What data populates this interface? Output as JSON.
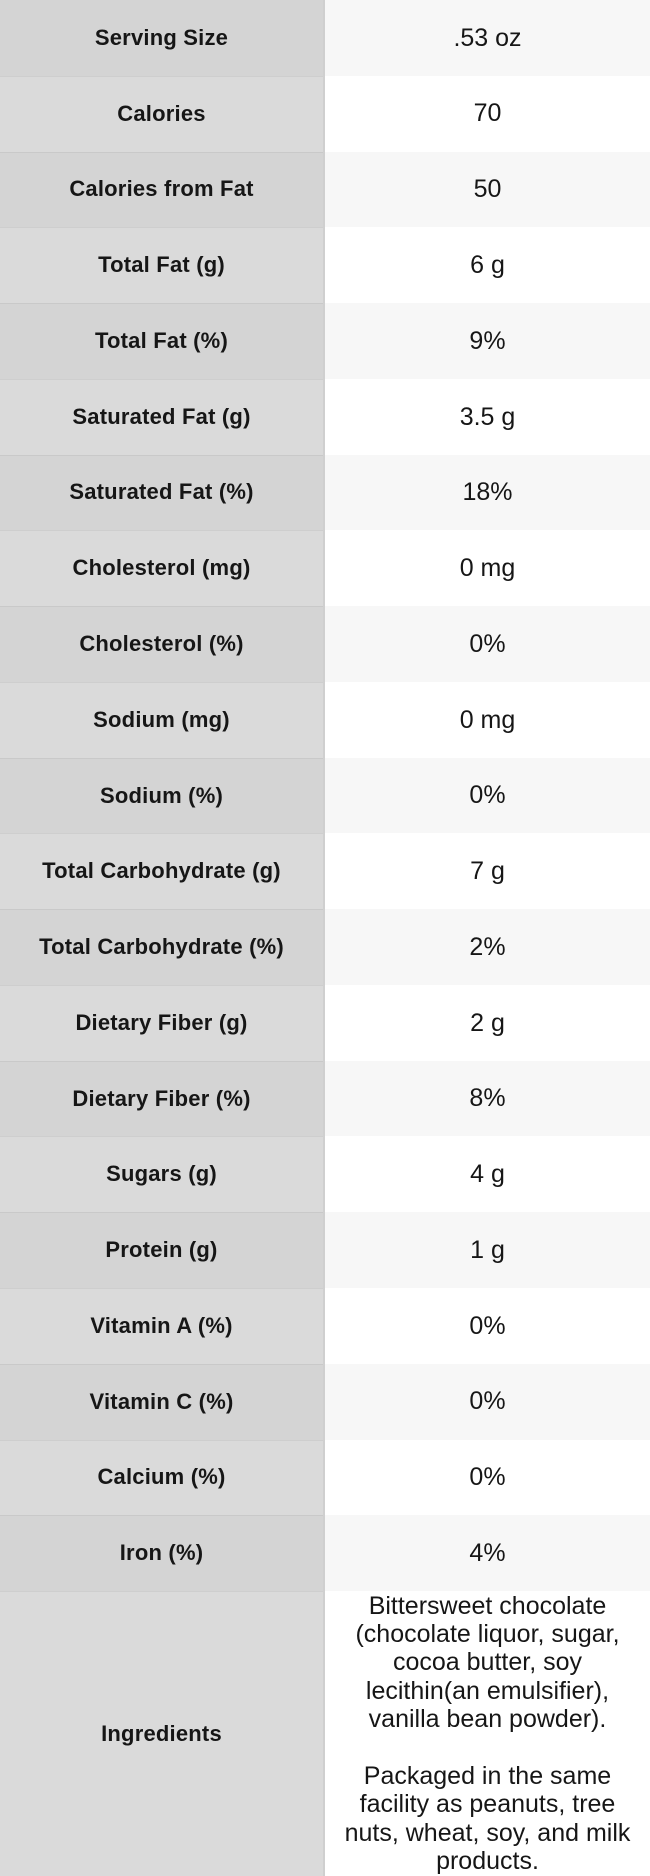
{
  "colors": {
    "label_bg_odd": "#d4d4d4",
    "label_bg_even": "#dadada",
    "value_bg_odd": "#f7f7f7",
    "value_bg_even": "#ffffff",
    "column_divider": "#cfcfcf",
    "text": "#161616"
  },
  "chart_data": {
    "type": "table",
    "title": "",
    "rows": [
      {
        "label": "Serving Size",
        "value": ".53 oz"
      },
      {
        "label": "Calories",
        "value": "70"
      },
      {
        "label": "Calories from Fat",
        "value": "50"
      },
      {
        "label": "Total Fat (g)",
        "value": "6 g"
      },
      {
        "label": "Total Fat (%)",
        "value": "9%"
      },
      {
        "label": "Saturated Fat (g)",
        "value": "3.5 g"
      },
      {
        "label": "Saturated Fat (%)",
        "value": "18%"
      },
      {
        "label": "Cholesterol (mg)",
        "value": "0 mg"
      },
      {
        "label": "Cholesterol (%)",
        "value": "0%"
      },
      {
        "label": "Sodium (mg)",
        "value": "0 mg"
      },
      {
        "label": "Sodium (%)",
        "value": "0%"
      },
      {
        "label": "Total Carbohydrate (g)",
        "value": "7 g"
      },
      {
        "label": "Total Carbohydrate (%)",
        "value": "2%"
      },
      {
        "label": "Dietary Fiber (g)",
        "value": "2 g"
      },
      {
        "label": "Dietary Fiber (%)",
        "value": "8%"
      },
      {
        "label": "Sugars (g)",
        "value": "4 g"
      },
      {
        "label": "Protein (g)",
        "value": "1 g"
      },
      {
        "label": "Vitamin A (%)",
        "value": "0%"
      },
      {
        "label": "Vitamin C (%)",
        "value": "0%"
      },
      {
        "label": "Calcium (%)",
        "value": "0%"
      },
      {
        "label": "Iron (%)",
        "value": "4%"
      },
      {
        "label": "Ingredients",
        "value": "Bittersweet chocolate (chocolate liquor, sugar, cocoa butter, soy lecithin(an emulsifier), vanilla bean powder).\n\nPackaged in the same facility as peanuts, tree nuts, wheat, soy, and milk products.",
        "tall": true
      }
    ]
  }
}
